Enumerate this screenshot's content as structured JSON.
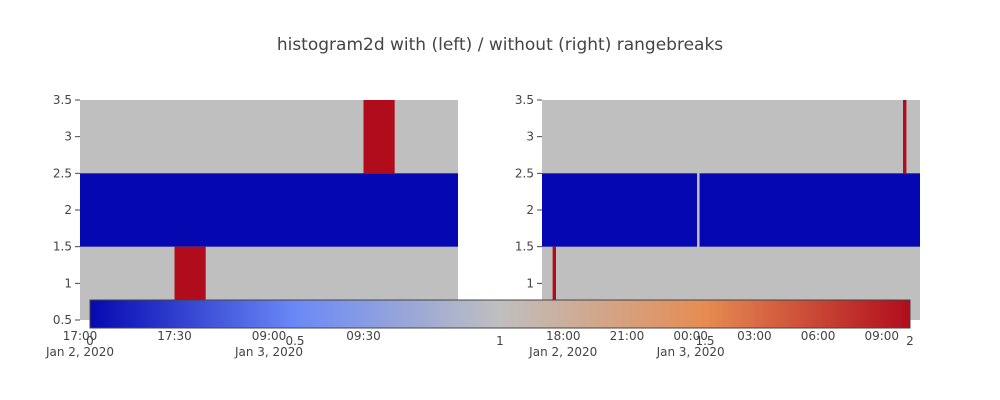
{
  "chart_data": {
    "type": "heatmap",
    "title": "histogram2d with (left) / without (right) rangebreaks",
    "colors": {
      "plot_bg": "#bfbfbf",
      "low": "#0508b0",
      "high": "#b10c1c",
      "axis_text": "#444444",
      "colorbar_border": "#444444"
    },
    "colorscale": [
      "#0508b0",
      "#6a89f7",
      "#bfbfbf",
      "#e68c52",
      "#b10c1c"
    ],
    "colorbar": {
      "range": [
        0,
        2
      ],
      "ticks": [
        {
          "value": 0,
          "label": "0"
        },
        {
          "value": 0.5,
          "label": "0.5"
        },
        {
          "value": 1,
          "label": "1"
        },
        {
          "value": 1.5,
          "label": "1.5"
        },
        {
          "value": 2,
          "label": "2"
        }
      ]
    },
    "panels": [
      {
        "name": "with rangebreaks",
        "ylim": [
          0.5,
          3.5
        ],
        "yticks": [
          "0.5",
          "1",
          "1.5",
          "2",
          "2.5",
          "3",
          "3.5"
        ],
        "xlim": [
          0,
          4
        ],
        "xticks": [
          {
            "pos": 0,
            "label": "17:00",
            "sublabel": "Jan 2, 2020"
          },
          {
            "pos": 1,
            "label": "17:30",
            "sublabel": ""
          },
          {
            "pos": 2,
            "label": "09:00",
            "sublabel": "Jan 3, 2020"
          },
          {
            "pos": 3,
            "label": "09:30",
            "sublabel": ""
          }
        ],
        "cells": [
          {
            "x0": 0,
            "x1": 4,
            "y0": 1.5,
            "y1": 2.5,
            "z": 0
          },
          {
            "x0": 1,
            "x1": 1.33,
            "y0": 0.5,
            "y1": 1.5,
            "z": 2
          },
          {
            "x0": 3,
            "x1": 3.33,
            "y0": 2.5,
            "y1": 3.5,
            "z": 2
          }
        ]
      },
      {
        "name": "without rangebreaks",
        "ylim": [
          0.5,
          3.5
        ],
        "yticks": [
          "0.5",
          "1",
          "1.5",
          "2",
          "2.5",
          "3",
          "3.5"
        ],
        "xlim": [
          0,
          17.8
        ],
        "xticks": [
          {
            "pos": 1,
            "label": "18:00",
            "sublabel": "Jan 2, 2020"
          },
          {
            "pos": 4,
            "label": "21:00",
            "sublabel": ""
          },
          {
            "pos": 7,
            "label": "00:00",
            "sublabel": "Jan 3, 2020"
          },
          {
            "pos": 10,
            "label": "03:00",
            "sublabel": ""
          },
          {
            "pos": 13,
            "label": "06:00",
            "sublabel": ""
          },
          {
            "pos": 16,
            "label": "09:00",
            "sublabel": ""
          }
        ],
        "cells": [
          {
            "x0": 0,
            "x1": 7.3,
            "y0": 1.5,
            "y1": 2.5,
            "z": 0
          },
          {
            "x0": 7.42,
            "x1": 17.8,
            "y0": 1.5,
            "y1": 2.5,
            "z": 0
          },
          {
            "x0": 0.5,
            "x1": 0.66,
            "y0": 0.5,
            "y1": 1.5,
            "z": 2
          },
          {
            "x0": 17.0,
            "x1": 17.16,
            "y0": 2.5,
            "y1": 3.5,
            "z": 2
          }
        ]
      }
    ]
  }
}
